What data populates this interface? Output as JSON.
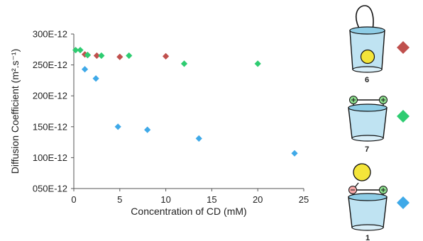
{
  "chart_data": {
    "type": "scatter",
    "title": "",
    "xlabel": "Concentration of CD (mM)",
    "ylabel": "Diffusion Coefficient (m².s⁻¹)",
    "xlim": [
      0,
      25
    ],
    "ylim": [
      5e-11,
      3e-10
    ],
    "x_ticks": [
      0,
      5,
      10,
      15,
      20,
      25
    ],
    "x_tick_labels": [
      "0",
      "5",
      "10",
      "15",
      "20",
      "25"
    ],
    "y_ticks": [
      5e-11,
      1e-10,
      1.5e-10,
      2e-10,
      2.5e-10,
      3e-10
    ],
    "y_tick_labels": [
      "050E-12",
      "100E-12",
      "150E-12",
      "200E-12",
      "250E-12",
      "300E-12"
    ],
    "grid": false,
    "legend": "right",
    "series": [
      {
        "key": "6",
        "color": "#c0504d",
        "marker": "diamond",
        "x": [
          1.2,
          1.5,
          2.5,
          5.0,
          10.0
        ],
        "y": [
          2.67e-10,
          2.66e-10,
          2.65e-10,
          2.63e-10,
          2.64e-10
        ]
      },
      {
        "key": "7",
        "color": "#2ecc71",
        "marker": "diamond",
        "x": [
          0.2,
          0.7,
          1.5,
          3.0,
          6.0,
          12.0,
          20.0
        ],
        "y": [
          2.74e-10,
          2.74e-10,
          2.66e-10,
          2.65e-10,
          2.65e-10,
          2.52e-10,
          2.52e-10
        ]
      },
      {
        "key": "1",
        "color": "#3fa9e8",
        "marker": "diamond",
        "x": [
          1.2,
          2.4,
          4.8,
          8.0,
          13.6,
          24.0
        ],
        "y": [
          2.43e-10,
          2.28e-10,
          1.5e-10,
          1.45e-10,
          1.31e-10,
          1.07e-10
        ]
      }
    ]
  },
  "legend_items": [
    {
      "label": "6",
      "color": "#c0504d",
      "icon": "cyclodextrin-with-handle-and-guest-icon"
    },
    {
      "label": "7",
      "color": "#2ecc71",
      "icon": "cyclodextrin-with-two-charged-groups-icon"
    },
    {
      "label": "1",
      "color": "#3fa9e8",
      "icon": "cyclodextrin-with-tethered-guest-icon"
    }
  ]
}
